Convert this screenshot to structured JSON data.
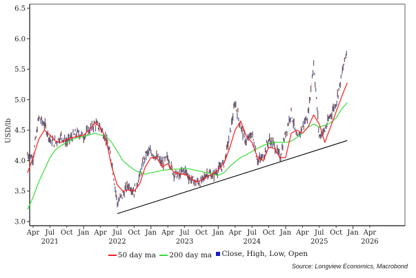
{
  "chart_data": {
    "type": "line",
    "title": "",
    "xlabel": "",
    "ylabel": "USD/lb",
    "ylim": [
      3.0,
      6.5
    ],
    "yticks": [
      "3.0",
      "3.5",
      "4.0",
      "4.5",
      "5.0",
      "5.5",
      "6.0",
      "6.5"
    ],
    "xticks": [
      "Apr",
      "Jul",
      "Oct",
      "Jan",
      "Apr",
      "Jul",
      "Oct",
      "Jan",
      "Apr",
      "Jul",
      "Oct",
      "Jan",
      "Apr",
      "Jul",
      "Oct",
      "Jan",
      "Apr",
      "Jul",
      "Oct",
      "Jan",
      "Apr"
    ],
    "xyears": [
      {
        "label": "2021",
        "tick_index": 1
      },
      {
        "label": "2022",
        "tick_index": 5
      },
      {
        "label": "2023",
        "tick_index": 9
      },
      {
        "label": "2024",
        "tick_index": 13
      },
      {
        "label": "2025",
        "tick_index": 17
      },
      {
        "label": "2026",
        "tick_index": 20
      }
    ],
    "grid": false,
    "legend_position": "bottom",
    "x": [
      "2021-03",
      "2021-04",
      "2021-05",
      "2021-06",
      "2021-07",
      "2021-08",
      "2021-09",
      "2021-10",
      "2021-11",
      "2021-12",
      "2022-01",
      "2022-02",
      "2022-03",
      "2022-04",
      "2022-05",
      "2022-06",
      "2022-07",
      "2022-08",
      "2022-09",
      "2022-10",
      "2022-11",
      "2022-12",
      "2023-01",
      "2023-02",
      "2023-03",
      "2023-04",
      "2023-05",
      "2023-06",
      "2023-07",
      "2023-08",
      "2023-09",
      "2023-10",
      "2023-11",
      "2023-12",
      "2024-01",
      "2024-02",
      "2024-03",
      "2024-04",
      "2024-05",
      "2024-06",
      "2024-07",
      "2024-08",
      "2024-09",
      "2024-10",
      "2024-11",
      "2024-12",
      "2025-01",
      "2025-02",
      "2025-03",
      "2025-04",
      "2025-05",
      "2025-06",
      "2025-07",
      "2025-08",
      "2025-09",
      "2025-10",
      "2025-11",
      "2025-12"
    ],
    "series": [
      {
        "name": "Close, High, Low, Open",
        "color": "#5a3a4a",
        "values": [
          4.1,
          4.05,
          4.7,
          4.6,
          4.35,
          4.3,
          4.4,
          4.3,
          4.4,
          4.45,
          4.4,
          4.5,
          4.6,
          4.55,
          4.35,
          4.0,
          3.3,
          3.45,
          3.6,
          3.5,
          3.75,
          4.1,
          4.15,
          4.05,
          3.95,
          4.05,
          3.8,
          3.75,
          3.85,
          3.7,
          3.65,
          3.65,
          3.8,
          3.75,
          3.85,
          3.95,
          4.4,
          4.95,
          4.55,
          4.3,
          4.45,
          4.0,
          4.05,
          4.35,
          4.25,
          4.05,
          4.45,
          4.8,
          4.35,
          4.55,
          4.75,
          5.6,
          4.4,
          4.5,
          4.75,
          4.95,
          5.4,
          5.85
        ]
      },
      {
        "name": "50 day ma",
        "color": "#ff1a1a",
        "values": [
          3.8,
          4.05,
          4.35,
          4.5,
          4.42,
          4.32,
          4.3,
          4.35,
          4.38,
          4.4,
          4.42,
          4.5,
          4.62,
          4.55,
          4.35,
          3.9,
          3.6,
          3.5,
          3.52,
          3.5,
          3.62,
          3.9,
          4.05,
          4.05,
          3.9,
          3.95,
          3.82,
          3.78,
          3.78,
          3.72,
          3.65,
          3.68,
          3.74,
          3.78,
          3.85,
          3.95,
          4.2,
          4.5,
          4.65,
          4.4,
          4.3,
          4.05,
          4.0,
          4.22,
          4.2,
          4.05,
          4.05,
          4.45,
          4.5,
          4.45,
          4.55,
          4.75,
          4.6,
          4.3,
          4.55,
          4.8,
          5.05,
          5.28
        ]
      },
      {
        "name": "200 day ma",
        "color": "#33dd33",
        "values": [
          3.2,
          3.4,
          3.65,
          3.85,
          4.05,
          4.18,
          4.25,
          4.3,
          4.35,
          4.38,
          4.4,
          4.42,
          4.45,
          4.42,
          4.4,
          4.3,
          4.15,
          4.0,
          3.92,
          3.85,
          3.8,
          3.78,
          3.8,
          3.82,
          3.84,
          3.85,
          3.86,
          3.86,
          3.88,
          3.86,
          3.84,
          3.82,
          3.8,
          3.78,
          3.76,
          3.8,
          3.9,
          3.98,
          4.05,
          4.1,
          4.15,
          4.2,
          4.25,
          4.28,
          4.3,
          4.3,
          4.3,
          4.32,
          4.38,
          4.45,
          4.55,
          4.6,
          4.55,
          4.58,
          4.62,
          4.7,
          4.85,
          4.95
        ]
      }
    ],
    "annotations": [
      {
        "type": "trendline",
        "color": "#000000",
        "from": {
          "x": "2022-07",
          "y": 3.13
        },
        "to": {
          "x": "2025-12",
          "y": 4.33
        }
      }
    ]
  },
  "legend": {
    "items": [
      {
        "label": "50 day ma",
        "color": "#ff1a1a",
        "kind": "line"
      },
      {
        "label": "200 day ma",
        "color": "#33dd33",
        "kind": "line"
      },
      {
        "label": "Close, High, Low, Open",
        "color": "#1a1acc",
        "kind": "box"
      }
    ]
  },
  "source": "Source: Longview Economics, Macrobond"
}
